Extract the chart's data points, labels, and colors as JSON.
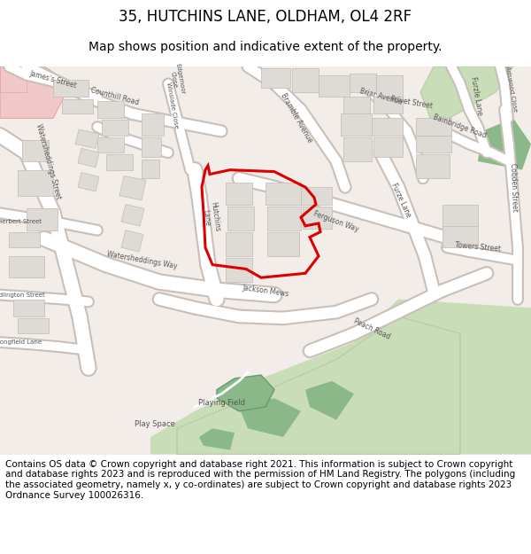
{
  "title": "35, HUTCHINS LANE, OLDHAM, OL4 2RF",
  "subtitle": "Map shows position and indicative extent of the property.",
  "copyright_text": "Contains OS data © Crown copyright and database right 2021. This information is subject to Crown copyright and database rights 2023 and is reproduced with the permission of HM Land Registry. The polygons (including the associated geometry, namely x, y co-ordinates) are subject to Crown copyright and database rights 2023 Ordnance Survey 100026316.",
  "map_bg": "#f2ede9",
  "road_color": "#ffffff",
  "road_outline": "#c8c0b8",
  "building_color": "#dedad5",
  "building_outline": "#c8c0b8",
  "green_light": "#c8ddb8",
  "green_dark": "#8ab888",
  "pink_color": "#f0c8c8",
  "red_outline": "#dd0000",
  "title_fontsize": 12,
  "subtitle_fontsize": 10,
  "copyright_fontsize": 7.5
}
